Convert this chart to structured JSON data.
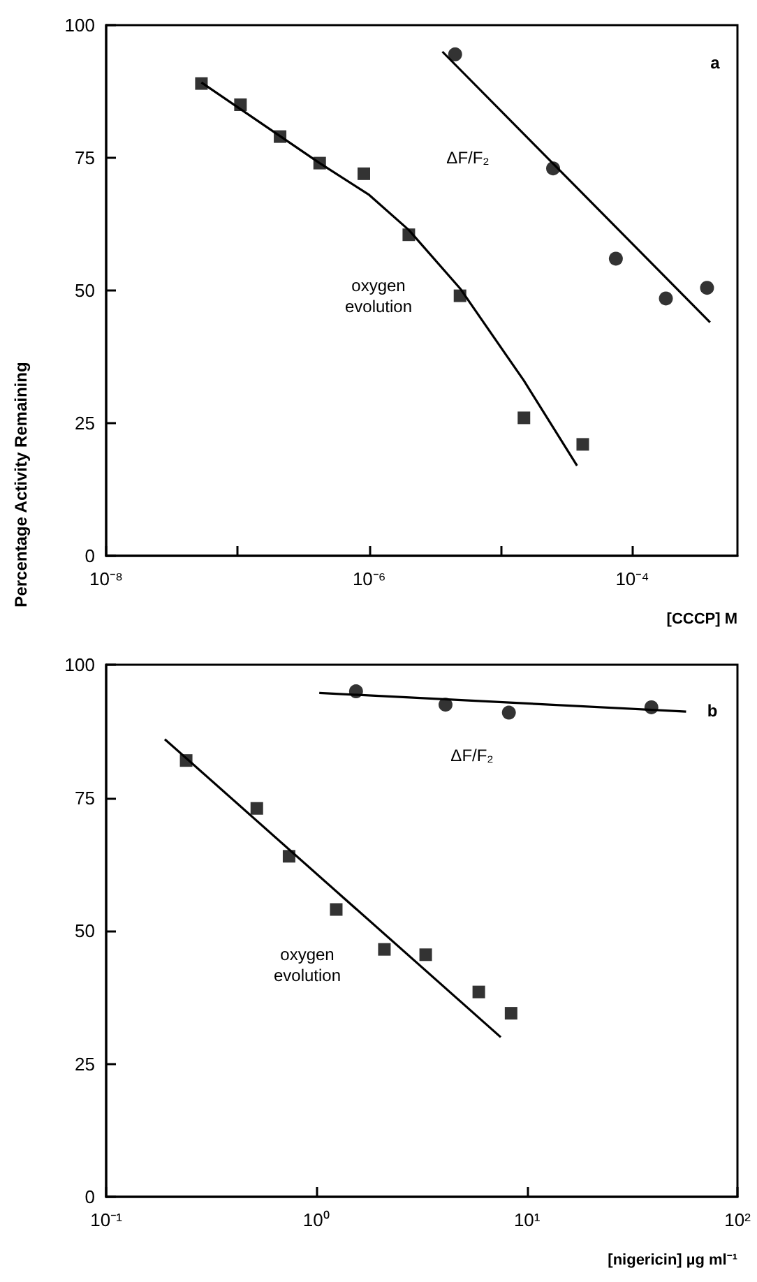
{
  "chart_data": [
    {
      "type": "scatter",
      "ylabel": "Percentage Activity Remaining",
      "xlabel": "[CCCP] M",
      "log": "x",
      "grid": false,
      "xlim": [
        1e-08,
        0.00063
      ],
      "xticks": [
        {
          "value": 1e-08,
          "label": "10⁻⁸"
        },
        {
          "value": 1e-07,
          "label": null
        },
        {
          "value": 1e-06,
          "label": "10⁻⁶"
        },
        {
          "value": 1e-05,
          "label": null
        },
        {
          "value": 0.0001,
          "label": "10⁻⁴"
        }
      ],
      "ylim": [
        0,
        100
      ],
      "yticks": [
        0,
        25,
        50,
        75,
        100
      ],
      "series": [
        {
          "type": "scatter",
          "marker": "square",
          "color": "#000000",
          "x": [
            5.3e-08,
            1.05e-07,
            2.1e-07,
            4.2e-07,
            9.1e-07,
            2e-06,
            4.9e-06,
            1.5e-05,
            4.2e-05
          ],
          "values": [
            89,
            85,
            79,
            74,
            72,
            60.5,
            49,
            26,
            21
          ]
        },
        {
          "type": "line",
          "marker": "none",
          "color": "#000000",
          "x": [
            5.3e-08,
            4.2e-07,
            1e-06,
            2e-06,
            4.9e-06,
            1.5e-05,
            3.8e-05
          ],
          "values": [
            89.2,
            74,
            68,
            61.4,
            50.4,
            33,
            17
          ]
        },
        {
          "type": "scatter",
          "marker": "circle",
          "color": "#000000",
          "x": [
            4.5e-06,
            2.5e-05,
            7.5e-05,
            0.00018,
            0.00037
          ],
          "values": [
            94.5,
            73,
            56,
            48.5,
            50.5
          ]
        },
        {
          "type": "line",
          "marker": "none",
          "color": "#000000",
          "x": [
            3.6e-06,
            0.00039
          ],
          "values": [
            95,
            44
          ]
        }
      ],
      "annotations": [
        "a",
        "oxygen evolution",
        "ΔF/F₂"
      ]
    },
    {
      "type": "scatter",
      "xlabel": "[nigericin] µg ml⁻¹",
      "log": "x",
      "grid": false,
      "xlim": [
        0.1,
        100
      ],
      "xticks": [
        {
          "value": 0.1,
          "label": "10⁻¹"
        },
        {
          "value": 1,
          "label": "10⁰"
        },
        {
          "value": 10,
          "label": "10¹"
        },
        {
          "value": 100,
          "label": "10²"
        }
      ],
      "ylim": [
        0,
        100
      ],
      "yticks": [
        0,
        25,
        50,
        75,
        100
      ],
      "series": [
        {
          "type": "scatter",
          "marker": "square",
          "color": "#000000",
          "x": [
            0.24,
            0.52,
            0.74,
            1.24,
            2.1,
            3.3,
            5.9,
            8.4
          ],
          "values": [
            82,
            73,
            64,
            54,
            46.5,
            45.5,
            38.5,
            34.5
          ]
        },
        {
          "type": "line",
          "marker": "none",
          "color": "#000000",
          "x": [
            0.19,
            7.5
          ],
          "values": [
            86,
            30
          ]
        },
        {
          "type": "scatter",
          "marker": "circle",
          "color": "#000000",
          "x": [
            1.54,
            4.1,
            8.2,
            39
          ],
          "values": [
            95,
            92.5,
            91,
            92
          ]
        },
        {
          "type": "line",
          "marker": "none",
          "color": "#000000",
          "x": [
            1.03,
            57
          ],
          "values": [
            94.7,
            91.2
          ]
        }
      ],
      "annotations": [
        "b",
        "oxygen evolution",
        "ΔF/F₂"
      ]
    }
  ]
}
